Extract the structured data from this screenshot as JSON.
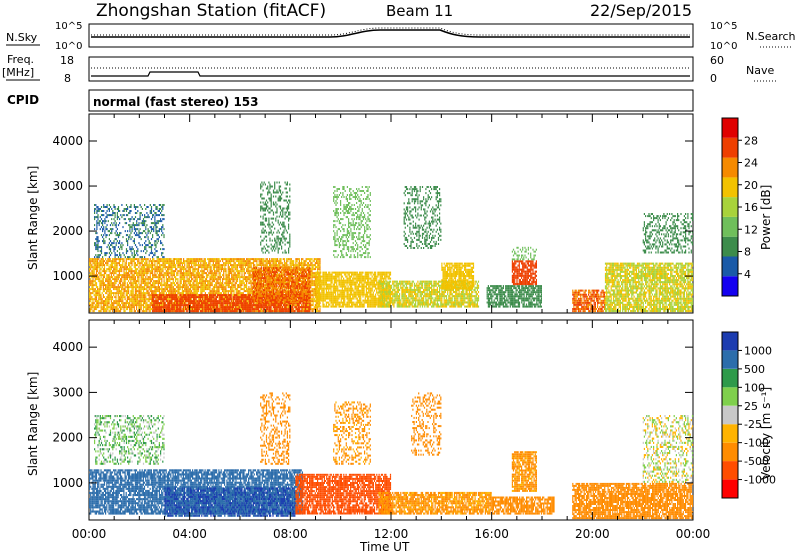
{
  "header": {
    "station": "Zhongshan Station (fitACF)",
    "beam": "Beam 11",
    "date": "22/Sep/2015"
  },
  "strip_labels": {
    "nsky": "N.Sky",
    "nsky_ticks": [
      "10^5",
      "10^0"
    ],
    "nsearch": "N.Search",
    "freq": "Freq.",
    "freq_unit": "[MHz]",
    "freq_ticks": [
      "18",
      "8"
    ],
    "nave": "Nave",
    "nave_ticks": [
      "60",
      "0"
    ],
    "nsearch_ticks": [
      "10^5",
      "10^0"
    ],
    "cpid": "CPID",
    "cpid_value": "normal (fast stereo) 153"
  },
  "colors": {
    "power": [
      "#1400f0",
      "#1a5aa8",
      "#3c8c4b",
      "#6fbf5b",
      "#a8d33b",
      "#f2c200",
      "#f58a00",
      "#ee3f00",
      "#e00000"
    ],
    "velocity": [
      "#ff0000",
      "#ff4d00",
      "#ff8c00",
      "#ffb300",
      "#c8c8c8",
      "#7fd04c",
      "#2e9a4a",
      "#2c6dab",
      "#1c3cb0"
    ]
  },
  "chart_data": [
    {
      "type": "heatmap",
      "title": "Power",
      "ylabel": "Slant Range [km]",
      "xlabel": "Time UT",
      "x_ticks": [
        "00:00",
        "04:00",
        "08:00",
        "12:00",
        "16:00",
        "20:00",
        "00:00"
      ],
      "y_ticks": [
        1000,
        2000,
        3000,
        4000
      ],
      "ylim": [
        180,
        4600
      ],
      "colorbar": {
        "label": "Power [dB]",
        "ticks": [
          4,
          8,
          12,
          16,
          20,
          24,
          28
        ]
      },
      "echo_regions": [
        {
          "t0": 0.0,
          "t1": 9.2,
          "r0": 200,
          "r1": 1400,
          "v": 22
        },
        {
          "t0": 2.5,
          "t1": 8.8,
          "r0": 200,
          "r1": 600,
          "v": 28
        },
        {
          "t0": 6.5,
          "t1": 8.8,
          "r0": 400,
          "r1": 1200,
          "v": 26
        },
        {
          "t0": 9.0,
          "t1": 12.0,
          "r0": 300,
          "r1": 1100,
          "v": 20
        },
        {
          "t0": 11.5,
          "t1": 15.5,
          "r0": 300,
          "r1": 900,
          "v": 18
        },
        {
          "t0": 14.0,
          "t1": 15.3,
          "r0": 700,
          "r1": 1300,
          "v": 20
        },
        {
          "t0": 15.8,
          "t1": 18.0,
          "r0": 300,
          "r1": 800,
          "v": 8
        },
        {
          "t0": 16.8,
          "t1": 17.8,
          "r0": 800,
          "r1": 1350,
          "v": 28
        },
        {
          "t0": 16.8,
          "t1": 17.8,
          "r0": 1350,
          "r1": 1650,
          "v": 12
        },
        {
          "t0": 19.2,
          "t1": 20.5,
          "r0": 200,
          "r1": 700,
          "v": 26
        },
        {
          "t0": 20.5,
          "t1": 24.0,
          "r0": 200,
          "r1": 1300,
          "v": 18
        },
        {
          "t0": 22.0,
          "t1": 24.0,
          "r0": 1500,
          "r1": 2400,
          "v": 8
        },
        {
          "t0": 0.2,
          "t1": 3.0,
          "r0": 1400,
          "r1": 2600,
          "v": 6
        },
        {
          "t0": 6.8,
          "t1": 8.0,
          "r0": 1500,
          "r1": 3100,
          "v": 8
        },
        {
          "t0": 9.7,
          "t1": 11.2,
          "r0": 1400,
          "r1": 3000,
          "v": 12
        },
        {
          "t0": 12.5,
          "t1": 14.0,
          "r0": 1600,
          "r1": 3000,
          "v": 8
        }
      ]
    },
    {
      "type": "heatmap",
      "title": "Velocity",
      "ylabel": "Slant Range [km]",
      "xlabel": "Time UT",
      "x_ticks": [
        "00:00",
        "04:00",
        "08:00",
        "12:00",
        "16:00",
        "20:00",
        "00:00"
      ],
      "y_ticks": [
        1000,
        2000,
        3000,
        4000
      ],
      "ylim": [
        180,
        4600
      ],
      "colorbar": {
        "label": "Velocity [m s⁻¹]",
        "ticks": [
          1000,
          500,
          100,
          25,
          -25,
          -100,
          -500,
          -1000
        ]
      },
      "echo_regions": [
        {
          "t0": 0.0,
          "t1": 8.5,
          "r0": 300,
          "r1": 1300,
          "v": 800
        },
        {
          "t0": 3.0,
          "t1": 8.2,
          "r0": 250,
          "r1": 900,
          "v": 1000
        },
        {
          "t0": 8.2,
          "t1": 12.0,
          "r0": 300,
          "r1": 1200,
          "v": -600
        },
        {
          "t0": 11.5,
          "t1": 16.0,
          "r0": 300,
          "r1": 800,
          "v": -150
        },
        {
          "t0": 16.0,
          "t1": 18.5,
          "r0": 300,
          "r1": 700,
          "v": -200
        },
        {
          "t0": 16.8,
          "t1": 17.8,
          "r0": 800,
          "r1": 1700,
          "v": -150
        },
        {
          "t0": 19.2,
          "t1": 24.0,
          "r0": 200,
          "r1": 1000,
          "v": -300
        },
        {
          "t0": 22.0,
          "t1": 24.0,
          "r0": 1000,
          "r1": 2500,
          "v": 0
        },
        {
          "t0": 0.2,
          "t1": 3.0,
          "r0": 1400,
          "r1": 2500,
          "v": 80
        },
        {
          "t0": 6.8,
          "t1": 8.0,
          "r0": 1400,
          "r1": 3000,
          "v": -200
        },
        {
          "t0": 9.7,
          "t1": 11.2,
          "r0": 1400,
          "r1": 2800,
          "v": -150
        },
        {
          "t0": 12.8,
          "t1": 14.0,
          "r0": 1600,
          "r1": 3000,
          "v": -200
        }
      ]
    }
  ]
}
